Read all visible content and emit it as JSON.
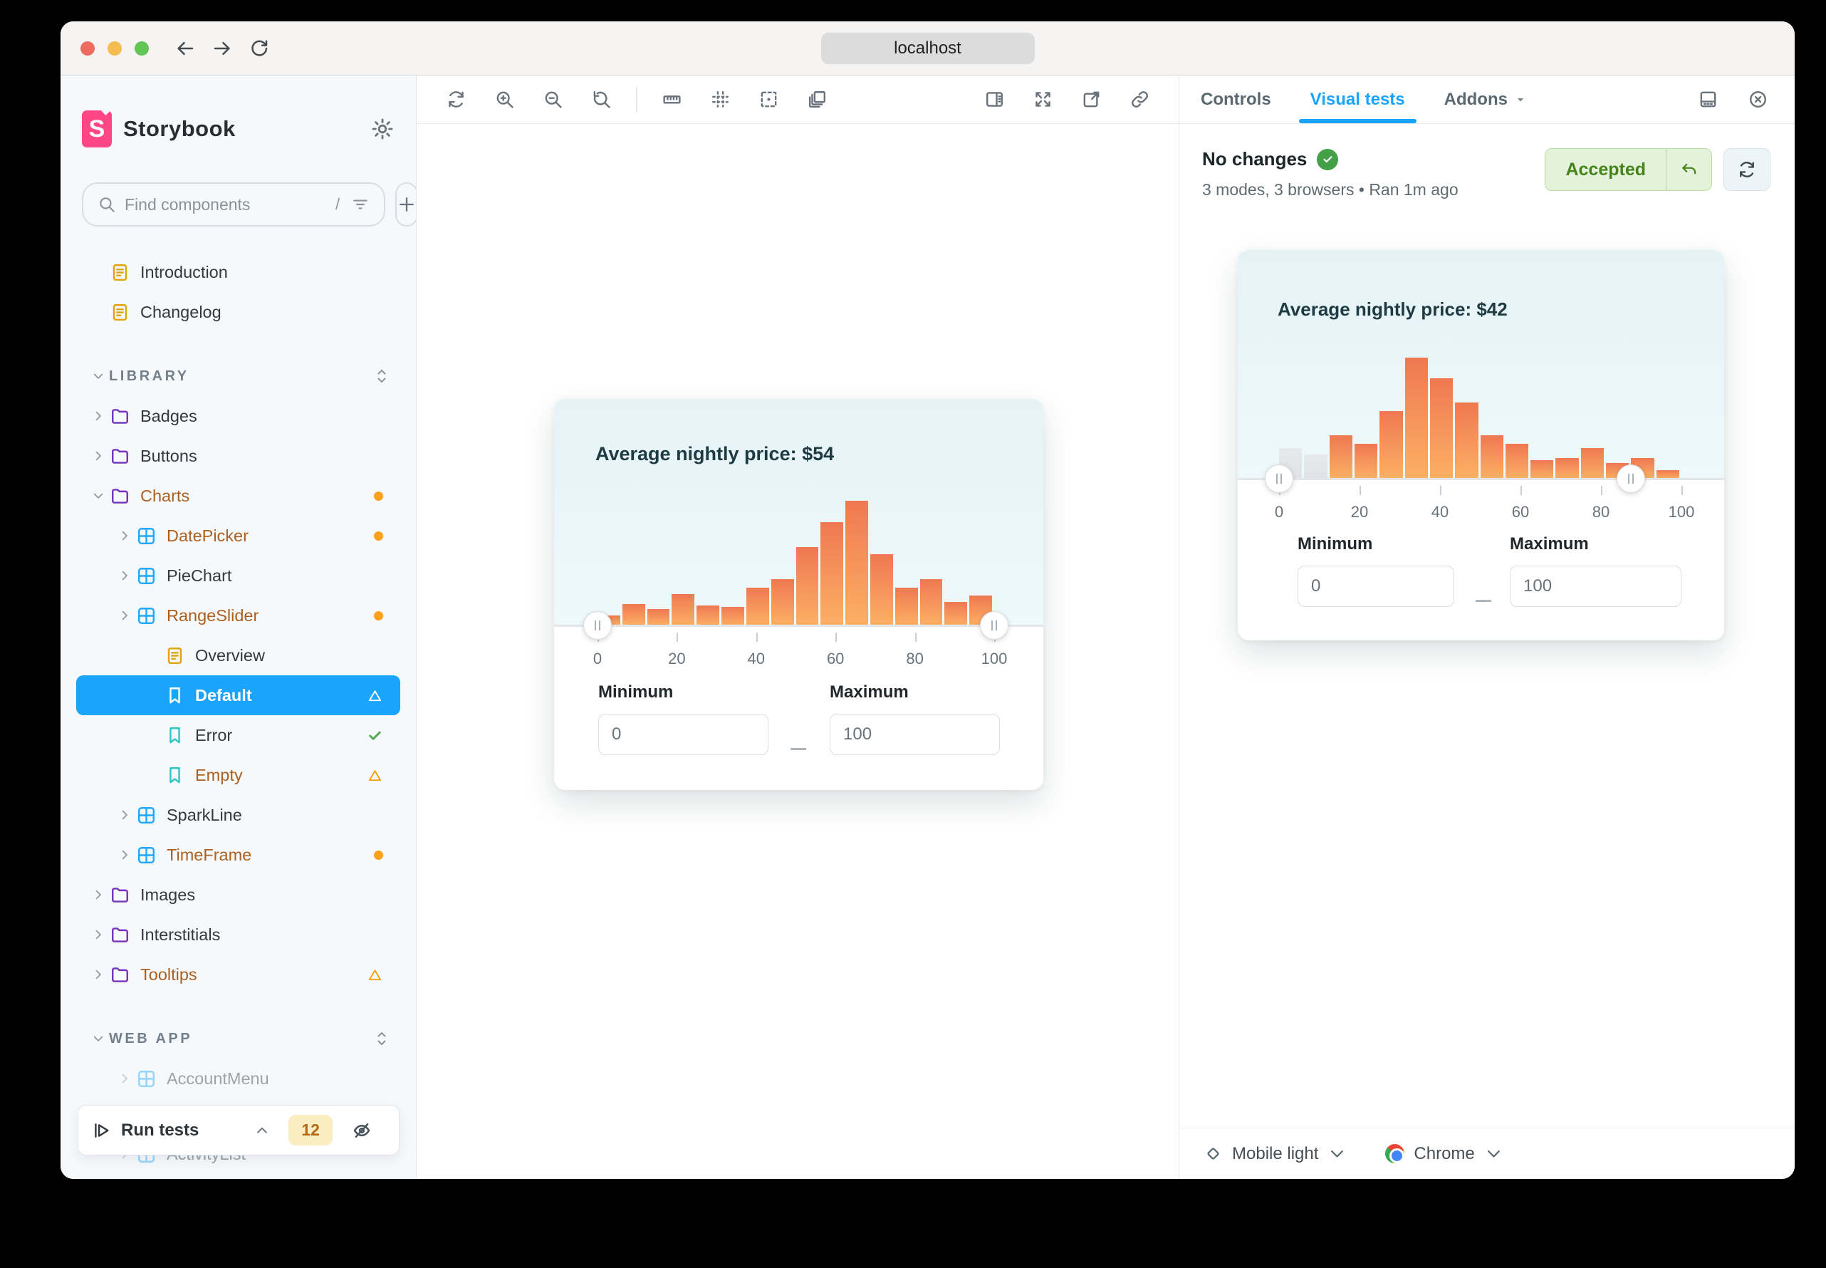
{
  "browser": {
    "url": "localhost"
  },
  "sidebar": {
    "logo_text": "Storybook",
    "search": {
      "placeholder": "Find components",
      "shortcut": "/"
    },
    "tree": [
      {
        "label": "Introduction",
        "icon": "doc-icon",
        "indent": "ind0nc"
      },
      {
        "label": "Changelog",
        "icon": "doc-icon",
        "indent": "ind0nc"
      },
      {
        "section": "LIBRARY"
      },
      {
        "label": "Badges",
        "icon": "folder-icon",
        "indent": "ind0",
        "chevron": "right"
      },
      {
        "label": "Buttons",
        "icon": "folder-icon",
        "indent": "ind0",
        "chevron": "right"
      },
      {
        "label": "Charts",
        "icon": "folder-icon",
        "indent": "ind0",
        "chevron": "down",
        "orange": true,
        "right": "dot"
      },
      {
        "label": "DatePicker",
        "icon": "component-icon",
        "indent": "ind1",
        "chevron": "right",
        "orange": true,
        "right": "dot"
      },
      {
        "label": "PieChart",
        "icon": "component-icon",
        "indent": "ind1",
        "chevron": "right"
      },
      {
        "label": "RangeSlider",
        "icon": "component-icon",
        "indent": "ind1",
        "chevron": "right",
        "orange": true,
        "right": "dot"
      },
      {
        "label": "Overview",
        "icon": "doc-icon",
        "indent": "ind2"
      },
      {
        "label": "Default",
        "icon": "bookmark-icon",
        "indent": "ind2",
        "selected": true,
        "right": "triangle-white"
      },
      {
        "label": "Error",
        "icon": "bookmark-icon",
        "indent": "ind2",
        "right": "check"
      },
      {
        "label": "Empty",
        "icon": "bookmark-icon",
        "indent": "ind2",
        "orange": true,
        "right": "triangle"
      },
      {
        "label": "SparkLine",
        "icon": "component-icon",
        "indent": "ind1",
        "chevron": "right"
      },
      {
        "label": "TimeFrame",
        "icon": "component-icon",
        "indent": "ind1",
        "chevron": "right",
        "orange": true,
        "right": "dot"
      },
      {
        "label": "Images",
        "icon": "folder-icon",
        "indent": "ind0",
        "chevron": "right"
      },
      {
        "label": "Interstitials",
        "icon": "folder-icon",
        "indent": "ind0",
        "chevron": "right"
      },
      {
        "label": "Tooltips",
        "icon": "folder-icon",
        "indent": "ind0",
        "chevron": "right",
        "orange": true,
        "right": "triangle"
      },
      {
        "section": "WEB APP"
      },
      {
        "label": "AccountMenu",
        "icon": "component-icon",
        "indent": "ind1",
        "chevron": "right",
        "faded": true
      },
      {
        "spacer": 50
      },
      {
        "label": "ActivityList",
        "icon": "component-icon",
        "indent": "ind1",
        "chevron": "right",
        "faded": true
      }
    ],
    "run_tests": {
      "label": "Run tests",
      "badge": "12"
    }
  },
  "canvas_toolbar": {
    "left": [
      "remount-icon",
      "zoom-in-icon",
      "zoom-out-icon",
      "zoom-reset-icon",
      "divider",
      "measure-icon",
      "grid-icon",
      "outline-icon",
      "copies-icon"
    ],
    "right": [
      "panel-toggle-icon",
      "fullscreen-icon",
      "open-new-tab-icon",
      "copy-link-icon"
    ]
  },
  "panel": {
    "tabs": [
      {
        "label": "Controls",
        "active": false
      },
      {
        "label": "Visual tests",
        "active": true
      },
      {
        "label": "Addons",
        "caret": true
      }
    ],
    "header_icons": [
      "panel-position-icon",
      "close-panel-icon"
    ],
    "status": {
      "title": "No changes",
      "status_icon": "check-circle-icon",
      "subtitle": "3 modes, 3 browsers • Ran 1m ago",
      "accepted_label": "Accepted"
    },
    "footer": {
      "mode": {
        "icon": "diamond-icon",
        "label": "Mobile light"
      },
      "browser": {
        "icon": "chrome-icon",
        "label": "Chrome"
      }
    }
  },
  "chart_data": [
    {
      "id": "canvas-story",
      "type": "bar",
      "title": "Average nightly price: $54",
      "x_tick_labels": [
        0,
        20,
        40,
        60,
        80,
        100
      ],
      "values_pct_of_max": [
        8,
        17,
        13,
        25,
        16,
        15,
        30,
        37,
        63,
        83,
        100,
        57,
        30,
        37,
        19,
        24
      ],
      "gray_bar_indexes": [],
      "slider_handles_pct": [
        0,
        100
      ],
      "min_label": "Minimum",
      "max_label": "Maximum",
      "inputs": {
        "minimum": "0",
        "maximum": "100"
      }
    },
    {
      "id": "panel-snapshot",
      "type": "bar",
      "title": "Average nightly price: $42",
      "x_tick_labels": [
        0,
        20,
        40,
        60,
        80,
        100
      ],
      "values_pct_of_max": [
        25,
        20,
        36,
        29,
        56,
        100,
        83,
        63,
        36,
        29,
        15,
        17,
        25,
        13,
        17,
        7
      ],
      "gray_bar_indexes": [
        0,
        1
      ],
      "slider_handles_pct": [
        0,
        87.5
      ],
      "min_label": "Minimum",
      "max_label": "Maximum",
      "inputs": {
        "minimum": "0",
        "maximum": "100"
      }
    }
  ]
}
